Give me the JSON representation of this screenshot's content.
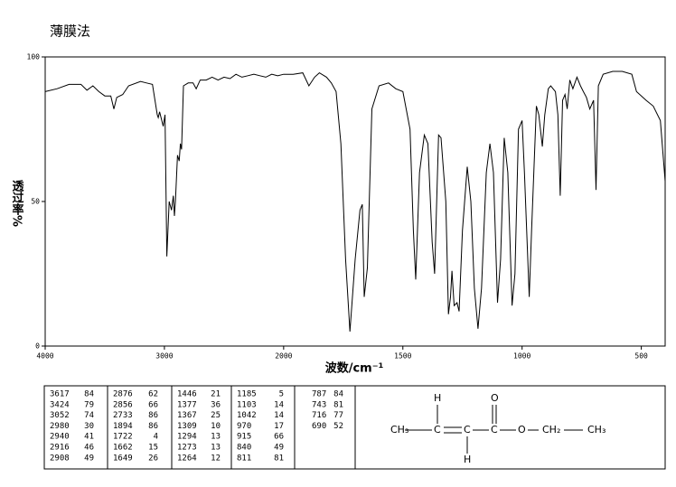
{
  "chart_data": {
    "type": "line",
    "title": "薄膜法",
    "x_label": "波数/cm⁻¹",
    "y_label": "透过率%",
    "xlim": [
      4000,
      400
    ],
    "x_scale_break": 2000,
    "ylim": [
      0,
      100
    ],
    "xticks": [
      4000,
      3000,
      2000,
      1500,
      1000,
      500
    ],
    "yticks": [
      0,
      50,
      100
    ],
    "color": "#000000",
    "x": [
      4000,
      3900,
      3800,
      3700,
      3650,
      3600,
      3550,
      3500,
      3450,
      3424,
      3400,
      3350,
      3300,
      3200,
      3150,
      3100,
      3060,
      3052,
      3040,
      3010,
      2995,
      2980,
      2960,
      2940,
      2925,
      2916,
      2908,
      2890,
      2876,
      2866,
      2856,
      2840,
      2800,
      2760,
      2733,
      2700,
      2650,
      2600,
      2550,
      2500,
      2450,
      2400,
      2350,
      2300,
      2250,
      2200,
      2150,
      2100,
      2050,
      2000,
      1960,
      1920,
      1894,
      1870,
      1850,
      1820,
      1800,
      1780,
      1760,
      1740,
      1722,
      1700,
      1680,
      1670,
      1662,
      1649,
      1630,
      1600,
      1560,
      1530,
      1500,
      1470,
      1456,
      1446,
      1430,
      1410,
      1395,
      1377,
      1367,
      1350,
      1340,
      1320,
      1309,
      1300,
      1294,
      1285,
      1273,
      1264,
      1250,
      1230,
      1215,
      1200,
      1185,
      1170,
      1150,
      1135,
      1120,
      1103,
      1090,
      1075,
      1060,
      1042,
      1030,
      1015,
      1000,
      990,
      970,
      960,
      940,
      930,
      915,
      905,
      890,
      880,
      860,
      850,
      840,
      830,
      820,
      811,
      800,
      787,
      770,
      755,
      743,
      730,
      716,
      700,
      690,
      680,
      660,
      620,
      580,
      540,
      520,
      480,
      450,
      420,
      400
    ],
    "values": [
      88,
      89,
      90.5,
      90.5,
      88.5,
      90,
      88,
      86.5,
      86.5,
      82,
      86,
      87,
      90,
      91.5,
      91,
      90.5,
      80,
      79,
      81,
      76,
      80,
      31,
      50,
      47,
      52,
      45,
      50,
      66,
      64,
      70,
      68,
      90,
      91,
      91,
      89,
      92,
      92,
      93,
      92,
      93,
      92.5,
      94,
      93,
      93.5,
      94,
      93.5,
      93,
      94,
      93.5,
      94,
      94,
      94.5,
      90,
      93,
      94.5,
      93,
      91,
      88,
      70,
      30,
      5,
      30,
      47,
      49,
      17,
      27,
      82,
      90,
      91,
      89,
      88,
      75,
      40,
      23,
      60,
      73,
      70,
      36,
      25,
      73,
      72,
      50,
      11,
      17,
      26,
      14,
      15,
      12,
      40,
      62,
      50,
      20,
      6,
      20,
      60,
      70,
      60,
      15,
      30,
      72,
      60,
      14,
      25,
      75,
      78,
      60,
      17,
      40,
      83,
      80,
      69,
      80,
      89,
      90,
      88,
      80,
      52,
      85,
      87,
      82,
      92,
      89,
      93,
      90,
      88,
      86,
      82,
      85,
      54,
      90,
      94,
      95,
      95,
      94,
      88,
      85,
      83,
      78,
      57
    ]
  },
  "peak_table": {
    "wavenumbers": [
      "3617",
      "3424",
      "3052",
      "2980",
      "2940",
      "2916",
      "2908",
      "2876",
      "2856",
      "2733",
      "1894",
      "1722",
      "1662",
      "1649",
      "1446",
      "1377",
      "1367",
      "1309",
      "1294",
      "1273",
      "1264",
      "1185",
      "1103",
      "1042",
      "970",
      "915",
      "840",
      "811",
      "787",
      "743",
      "716",
      "690"
    ],
    "transmittances": [
      "84",
      "79",
      "74",
      "30",
      "41",
      "46",
      "49",
      "62",
      "66",
      "86",
      "86",
      "4",
      "15",
      "26",
      "21",
      "36",
      "25",
      "10",
      "13",
      "13",
      "12",
      "5",
      "14",
      "14",
      "17",
      "66",
      "49",
      "81",
      "84",
      "81",
      "77",
      "52"
    ]
  },
  "structure": {
    "atoms": [
      "CH₃",
      "C",
      "C",
      "C",
      "O",
      "CH₂",
      "CH₃",
      "H",
      "H",
      "O"
    ]
  }
}
